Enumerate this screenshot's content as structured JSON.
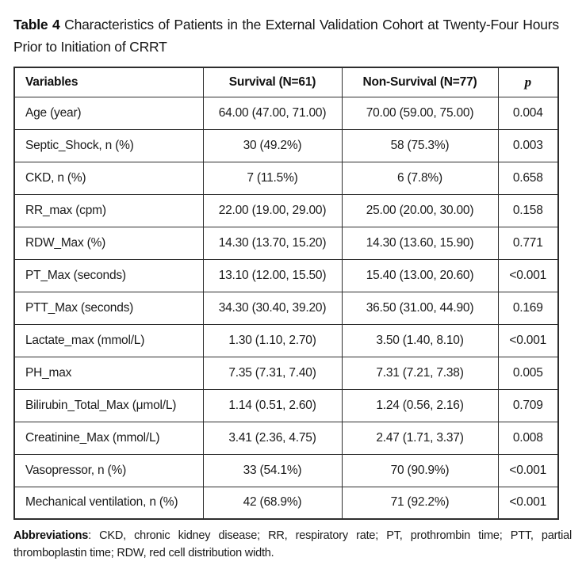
{
  "caption": {
    "label": "Table 4",
    "text": " Characteristics of Patients in the External Validation Cohort at Twenty-Four Hours Prior to Initiation of CRRT"
  },
  "table": {
    "headers": [
      "Variables",
      "Survival (N=61)",
      "Non-Survival (N=77)",
      "p"
    ],
    "rows": [
      {
        "variable": "Age (year)",
        "survival": "64.00 (47.00, 71.00)",
        "non_survival": "70.00 (59.00, 75.00)",
        "p": "0.004"
      },
      {
        "variable": "Septic_Shock, n (%)",
        "survival": "30 (49.2%)",
        "non_survival": "58 (75.3%)",
        "p": "0.003"
      },
      {
        "variable": "CKD, n (%)",
        "survival": "7 (11.5%)",
        "non_survival": "6 (7.8%)",
        "p": "0.658"
      },
      {
        "variable": "RR_max (cpm)",
        "survival": "22.00 (19.00, 29.00)",
        "non_survival": "25.00 (20.00, 30.00)",
        "p": "0.158"
      },
      {
        "variable": "RDW_Max (%)",
        "survival": "14.30 (13.70, 15.20)",
        "non_survival": "14.30 (13.60, 15.90)",
        "p": "0.771"
      },
      {
        "variable": "PT_Max (seconds)",
        "survival": "13.10 (12.00, 15.50)",
        "non_survival": "15.40 (13.00, 20.60)",
        "p": "<0.001"
      },
      {
        "variable": "PTT_Max (seconds)",
        "survival": "34.30 (30.40, 39.20)",
        "non_survival": "36.50 (31.00, 44.90)",
        "p": "0.169"
      },
      {
        "variable": "Lactate_max (mmol/L)",
        "survival": "1.30 (1.10, 2.70)",
        "non_survival": "3.50 (1.40, 8.10)",
        "p": "<0.001"
      },
      {
        "variable": "PH_max",
        "survival": "7.35 (7.31, 7.40)",
        "non_survival": "7.31 (7.21, 7.38)",
        "p": "0.005"
      },
      {
        "variable": "Bilirubin_Total_Max (μmol/L)",
        "survival": "1.14 (0.51, 2.60)",
        "non_survival": "1.24 (0.56, 2.16)",
        "p": "0.709"
      },
      {
        "variable": "Creatinine_Max (mmol/L)",
        "survival": "3.41 (2.36, 4.75)",
        "non_survival": "2.47 (1.71, 3.37)",
        "p": "0.008"
      },
      {
        "variable": "Vasopressor, n (%)",
        "survival": "33 (54.1%)",
        "non_survival": "70 (90.9%)",
        "p": "<0.001"
      },
      {
        "variable": "Mechanical ventilation, n (%)",
        "survival": "42 (68.9%)",
        "non_survival": "71 (92.2%)",
        "p": "<0.001"
      }
    ]
  },
  "footnote": {
    "label": "Abbreviations",
    "text": ": CKD, chronic kidney disease; RR, respiratory rate; PT, prothrombin time; PTT, partial thromboplastin time; RDW, red cell distribution width."
  }
}
